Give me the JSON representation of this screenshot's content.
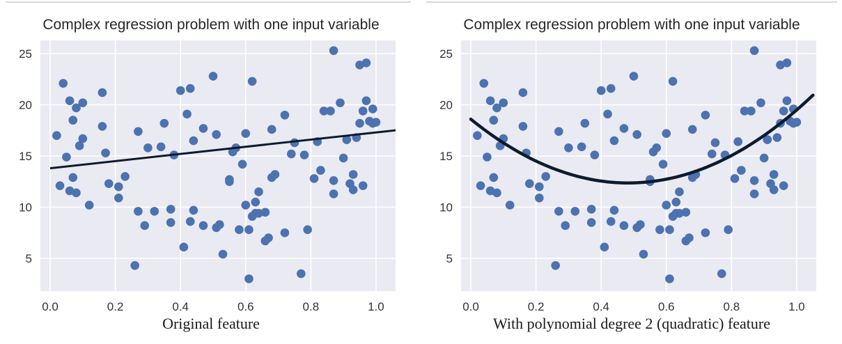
{
  "figure": {
    "colors": {
      "plot_background": "#eaeaf2",
      "grid": "#ffffff",
      "points": "#4c72b0",
      "fit_line": "#0d1b2e"
    }
  },
  "chart_data": [
    {
      "type": "scatter",
      "title": "Complex regression problem with one input variable",
      "caption": "Original feature",
      "xlim": [
        -0.03,
        1.06
      ],
      "ylim": [
        1.8,
        26.3
      ],
      "xticks": [
        0.0,
        0.2,
        0.4,
        0.6,
        0.8,
        1.0
      ],
      "xtick_labels": [
        "0.0",
        "0.2",
        "0.4",
        "0.6",
        "0.8",
        "1.0"
      ],
      "yticks": [
        5,
        10,
        15,
        20,
        25
      ],
      "ytick_labels": [
        "5",
        "10",
        "15",
        "20",
        "25"
      ],
      "grid": true,
      "series": [
        {
          "kind": "points",
          "x": [
            0.02,
            0.03,
            0.04,
            0.05,
            0.06,
            0.07,
            0.08,
            0.06,
            0.07,
            0.08,
            0.09,
            0.1,
            0.1,
            0.12,
            0.16,
            0.16,
            0.17,
            0.18,
            0.21,
            0.21,
            0.23,
            0.26,
            0.27,
            0.27,
            0.29,
            0.3,
            0.32,
            0.34,
            0.35,
            0.37,
            0.37,
            0.38,
            0.4,
            0.41,
            0.42,
            0.43,
            0.43,
            0.44,
            0.44,
            0.47,
            0.47,
            0.5,
            0.51,
            0.51,
            0.52,
            0.53,
            0.55,
            0.55,
            0.56,
            0.57,
            0.58,
            0.59,
            0.6,
            0.6,
            0.61,
            0.61,
            0.62,
            0.62,
            0.63,
            0.63,
            0.64,
            0.64,
            0.66,
            0.66,
            0.67,
            0.68,
            0.68,
            0.69,
            0.72,
            0.72,
            0.74,
            0.75,
            0.77,
            0.78,
            0.79,
            0.81,
            0.82,
            0.83,
            0.84,
            0.86,
            0.87,
            0.87,
            0.87,
            0.89,
            0.9,
            0.91,
            0.91,
            0.92,
            0.93,
            0.93,
            0.94,
            0.95,
            0.95,
            0.96,
            0.96,
            0.97,
            0.97,
            0.98,
            0.99,
            0.99,
            1.0
          ],
          "y": [
            17.0,
            12.1,
            22.1,
            14.9,
            20.4,
            18.5,
            19.7,
            11.6,
            12.9,
            11.4,
            16.0,
            16.7,
            20.2,
            10.2,
            21.2,
            17.9,
            15.3,
            12.3,
            12.0,
            10.9,
            13.0,
            4.3,
            9.6,
            17.4,
            8.2,
            15.8,
            9.6,
            15.9,
            18.2,
            9.8,
            8.5,
            15.1,
            21.4,
            6.1,
            19.1,
            21.6,
            8.6,
            9.7,
            16.5,
            17.7,
            8.2,
            22.8,
            8.0,
            17.1,
            8.3,
            5.4,
            12.5,
            12.7,
            15.4,
            15.8,
            7.8,
            14.2,
            17.2,
            10.2,
            7.8,
            3.0,
            22.3,
            9.1,
            9.4,
            10.5,
            11.5,
            9.4,
            9.5,
            6.7,
            7.0,
            17.6,
            12.9,
            13.2,
            19.0,
            7.5,
            15.2,
            16.3,
            3.5,
            15.1,
            7.8,
            12.8,
            16.4,
            13.6,
            19.4,
            19.4,
            25.3,
            12.6,
            11.3,
            20.2,
            14.8,
            16.6,
            16.6,
            12.3,
            13.2,
            11.7,
            16.8,
            18.2,
            23.9,
            19.4,
            12.1,
            20.4,
            24.1,
            18.4,
            19.6,
            18.2,
            18.3
          ]
        },
        {
          "kind": "fit",
          "model": "linear",
          "x": [
            0.0,
            1.07
          ],
          "y": [
            13.8,
            17.55
          ]
        }
      ]
    },
    {
      "type": "scatter",
      "title": "Complex regression problem with one input variable",
      "caption": "With polynomial degree 2 (quadratic) feature",
      "xlim": [
        -0.03,
        1.06
      ],
      "ylim": [
        1.8,
        26.3
      ],
      "xticks": [
        0.0,
        0.2,
        0.4,
        0.6,
        0.8,
        1.0
      ],
      "xtick_labels": [
        "0.0",
        "0.2",
        "0.4",
        "0.6",
        "0.8",
        "1.0"
      ],
      "yticks": [
        5,
        10,
        15,
        20,
        25
      ],
      "ytick_labels": [
        "5",
        "10",
        "15",
        "20",
        "25"
      ],
      "grid": true,
      "series": [
        {
          "kind": "points",
          "x": [
            0.02,
            0.03,
            0.04,
            0.05,
            0.06,
            0.07,
            0.08,
            0.06,
            0.07,
            0.08,
            0.09,
            0.1,
            0.1,
            0.12,
            0.16,
            0.16,
            0.17,
            0.18,
            0.21,
            0.21,
            0.23,
            0.26,
            0.27,
            0.27,
            0.29,
            0.3,
            0.32,
            0.34,
            0.35,
            0.37,
            0.37,
            0.38,
            0.4,
            0.41,
            0.42,
            0.43,
            0.43,
            0.44,
            0.44,
            0.47,
            0.47,
            0.5,
            0.51,
            0.51,
            0.52,
            0.53,
            0.55,
            0.55,
            0.56,
            0.57,
            0.58,
            0.59,
            0.6,
            0.6,
            0.61,
            0.61,
            0.62,
            0.62,
            0.63,
            0.63,
            0.64,
            0.64,
            0.66,
            0.66,
            0.67,
            0.68,
            0.68,
            0.69,
            0.72,
            0.72,
            0.74,
            0.75,
            0.77,
            0.78,
            0.79,
            0.81,
            0.82,
            0.83,
            0.84,
            0.86,
            0.87,
            0.87,
            0.87,
            0.89,
            0.9,
            0.91,
            0.91,
            0.92,
            0.93,
            0.93,
            0.94,
            0.95,
            0.95,
            0.96,
            0.96,
            0.97,
            0.97,
            0.98,
            0.99,
            0.99,
            1.0
          ],
          "y": [
            17.0,
            12.1,
            22.1,
            14.9,
            20.4,
            18.5,
            19.7,
            11.6,
            12.9,
            11.4,
            16.0,
            16.7,
            20.2,
            10.2,
            21.2,
            17.9,
            15.3,
            12.3,
            12.0,
            10.9,
            13.0,
            4.3,
            9.6,
            17.4,
            8.2,
            15.8,
            9.6,
            15.9,
            18.2,
            9.8,
            8.5,
            15.1,
            21.4,
            6.1,
            19.1,
            21.6,
            8.6,
            9.7,
            16.5,
            17.7,
            8.2,
            22.8,
            8.0,
            17.1,
            8.3,
            5.4,
            12.5,
            12.7,
            15.4,
            15.8,
            7.8,
            14.2,
            17.2,
            10.2,
            7.8,
            3.0,
            22.3,
            9.1,
            9.4,
            10.5,
            11.5,
            9.4,
            9.5,
            6.7,
            7.0,
            17.6,
            12.9,
            13.2,
            19.0,
            7.5,
            15.2,
            16.3,
            3.5,
            15.1,
            7.8,
            12.8,
            16.4,
            13.6,
            19.4,
            19.4,
            25.3,
            12.6,
            11.3,
            20.2,
            14.8,
            16.6,
            16.6,
            12.3,
            13.2,
            11.7,
            16.8,
            18.2,
            23.9,
            19.4,
            12.1,
            20.4,
            24.1,
            18.4,
            19.6,
            18.2,
            18.3
          ]
        },
        {
          "kind": "fit",
          "model": "quadratic",
          "coefficients": [
            18.6,
            -25.8,
            26.7
          ],
          "x_range": [
            0.0,
            1.05
          ]
        }
      ]
    }
  ]
}
